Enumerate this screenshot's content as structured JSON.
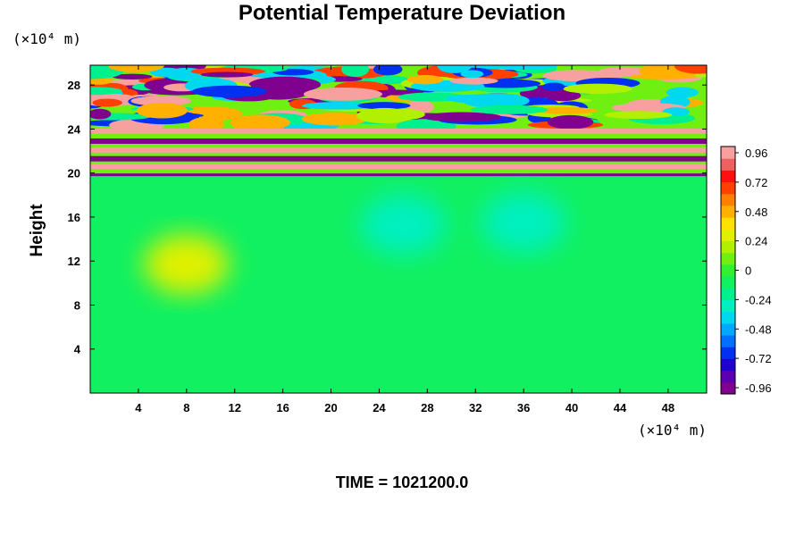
{
  "chart_data": {
    "type": "heatmap",
    "title": "Potential Temperature Deviation",
    "ylabel": "Height",
    "x_unit": "(×10⁴ m)",
    "y_unit": "(×10⁴ m)",
    "footer": "TIME = 1021200.0",
    "x_ticks": [
      4,
      8,
      12,
      16,
      20,
      24,
      28,
      32,
      36,
      40,
      44,
      48
    ],
    "y_ticks": [
      4,
      8,
      12,
      16,
      20,
      24,
      28
    ],
    "xlim": [
      0,
      51.2
    ],
    "ylim": [
      0,
      29.8
    ],
    "colorbar": {
      "ticks": [
        "0.96",
        "0.72",
        "0.48",
        "0.24",
        "0",
        "-0.24",
        "-0.48",
        "-0.72",
        "-0.96"
      ],
      "range": [
        -1.0,
        1.0
      ],
      "colors": [
        "#800090",
        "#5a00b0",
        "#2000d0",
        "#0030f0",
        "#0070ff",
        "#00a8ff",
        "#00d8f0",
        "#00f0c0",
        "#00f090",
        "#10f060",
        "#30f030",
        "#70f010",
        "#b0f000",
        "#e0f000",
        "#ffe000",
        "#ffb000",
        "#ff8000",
        "#ff4000",
        "#ff1010",
        "#f06060",
        "#f8a0a0"
      ]
    },
    "field_summary": {
      "background_value": -0.1,
      "upper_layer_y_start": 19.8,
      "features": [
        {
          "name": "warm band",
          "y": 20.6,
          "value": 0.96
        },
        {
          "name": "cold band",
          "y": 21.3,
          "value": -0.96
        },
        {
          "name": "warm band",
          "y": 22.1,
          "value": 0.96
        },
        {
          "name": "cold band",
          "y": 22.9,
          "value": -0.96
        },
        {
          "name": "warm band",
          "y": 23.8,
          "value": 0.96
        },
        {
          "name": "cold patch",
          "x": 26,
          "y": 15.3,
          "value": -0.35
        },
        {
          "name": "cold patch",
          "x": 36,
          "y": 15.5,
          "value": -0.35
        },
        {
          "name": "warm patch",
          "x": 8,
          "y": 11.7,
          "value": 0.28
        }
      ]
    }
  }
}
